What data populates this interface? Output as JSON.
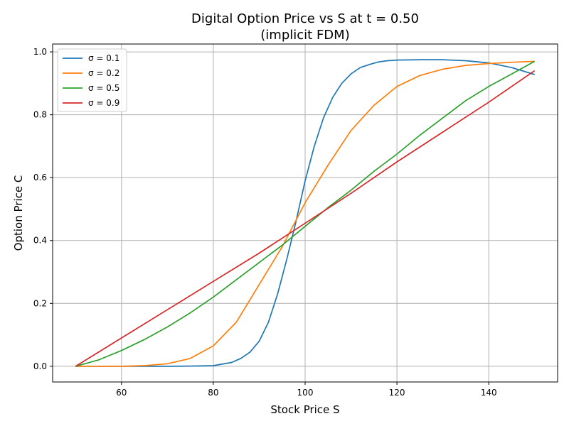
{
  "chart_data": {
    "type": "line",
    "title_line1": "Digital Option Price vs S at t = 0.50",
    "title_line2": "(implicit FDM)",
    "xlabel": "Stock Price S",
    "ylabel": "Option Price C",
    "xlim": [
      45,
      155
    ],
    "ylim": [
      -0.05,
      1.025
    ],
    "xticks": [
      60,
      80,
      100,
      120,
      140
    ],
    "yticks": [
      0.0,
      0.2,
      0.4,
      0.6,
      0.8,
      1.0
    ],
    "xtick_labels": [
      "60",
      "80",
      "100",
      "120",
      "140"
    ],
    "ytick_labels": [
      "0.0",
      "0.2",
      "0.4",
      "0.6",
      "0.8",
      "1.0"
    ],
    "grid": true,
    "legend_position": "upper-left",
    "series": [
      {
        "name": "σ = 0.1",
        "color": "#1f77b4",
        "x": [
          50,
          60,
          70,
          75,
          80,
          84,
          86,
          88,
          90,
          92,
          94,
          96,
          98,
          100,
          102,
          104,
          106,
          108,
          110,
          112,
          114,
          116,
          118,
          120,
          125,
          130,
          135,
          140,
          145,
          150
        ],
        "y": [
          0.0,
          0.0,
          0.0,
          0.0005,
          0.002,
          0.012,
          0.025,
          0.045,
          0.08,
          0.14,
          0.23,
          0.34,
          0.46,
          0.59,
          0.7,
          0.79,
          0.855,
          0.9,
          0.93,
          0.95,
          0.96,
          0.968,
          0.972,
          0.974,
          0.975,
          0.975,
          0.972,
          0.965,
          0.95,
          0.928
        ]
      },
      {
        "name": "σ = 0.2",
        "color": "#ff7f0e",
        "x": [
          50,
          60,
          65,
          70,
          75,
          80,
          85,
          90,
          95,
          100,
          105,
          110,
          115,
          120,
          125,
          130,
          135,
          140,
          145,
          150
        ],
        "y": [
          0.0,
          0.0,
          0.002,
          0.008,
          0.025,
          0.065,
          0.14,
          0.26,
          0.38,
          0.52,
          0.64,
          0.75,
          0.83,
          0.89,
          0.925,
          0.945,
          0.957,
          0.963,
          0.967,
          0.97
        ]
      },
      {
        "name": "σ = 0.5",
        "color": "#2ca02c",
        "x": [
          50,
          55,
          60,
          65,
          70,
          75,
          80,
          85,
          90,
          95,
          100,
          105,
          110,
          115,
          120,
          125,
          130,
          135,
          140,
          145,
          150
        ],
        "y": [
          0.0,
          0.02,
          0.05,
          0.085,
          0.125,
          0.17,
          0.22,
          0.275,
          0.33,
          0.385,
          0.445,
          0.505,
          0.56,
          0.62,
          0.675,
          0.735,
          0.79,
          0.845,
          0.89,
          0.93,
          0.97
        ]
      },
      {
        "name": "σ = 0.9",
        "color": "#d62728",
        "x": [
          50,
          60,
          70,
          80,
          90,
          100,
          110,
          120,
          130,
          140,
          150
        ],
        "y": [
          0.0,
          0.09,
          0.18,
          0.27,
          0.36,
          0.455,
          0.55,
          0.65,
          0.745,
          0.84,
          0.94
        ]
      }
    ]
  }
}
